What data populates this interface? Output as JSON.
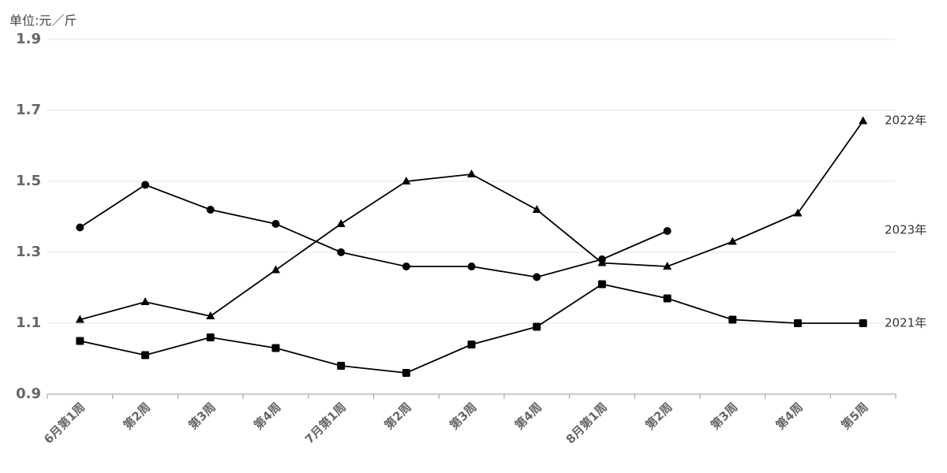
{
  "chart_data": {
    "type": "line",
    "y_label": "单位:元／斤",
    "categories": [
      "6月第1周",
      "第2周",
      "第3周",
      "第4周",
      "7月第1周",
      "第2周",
      "第3周",
      "第4周",
      "8月第1周",
      "第2周",
      "第3周",
      "第4周",
      "第5周"
    ],
    "series": [
      {
        "name": "2021年",
        "color": "#000000",
        "marker": "square",
        "values": [
          1.05,
          1.01,
          1.06,
          1.03,
          0.98,
          0.96,
          1.04,
          1.09,
          1.21,
          1.17,
          1.11,
          1.1,
          1.1
        ]
      },
      {
        "name": "2022年",
        "color": "#000000",
        "marker": "triangle",
        "values": [
          1.11,
          1.16,
          1.12,
          1.25,
          1.38,
          1.5,
          1.52,
          1.42,
          1.27,
          1.26,
          1.33,
          1.41,
          1.67
        ]
      },
      {
        "name": "2023年",
        "color": "#000000",
        "marker": "circle",
        "values": [
          1.37,
          1.49,
          1.42,
          1.38,
          1.3,
          1.26,
          1.26,
          1.23,
          1.28,
          1.36,
          null,
          null,
          null
        ]
      }
    ],
    "ylim": [
      0.9,
      1.9
    ],
    "yticks": [
      0.9,
      1.1,
      1.3,
      1.5,
      1.7,
      1.9
    ],
    "grid": true
  }
}
